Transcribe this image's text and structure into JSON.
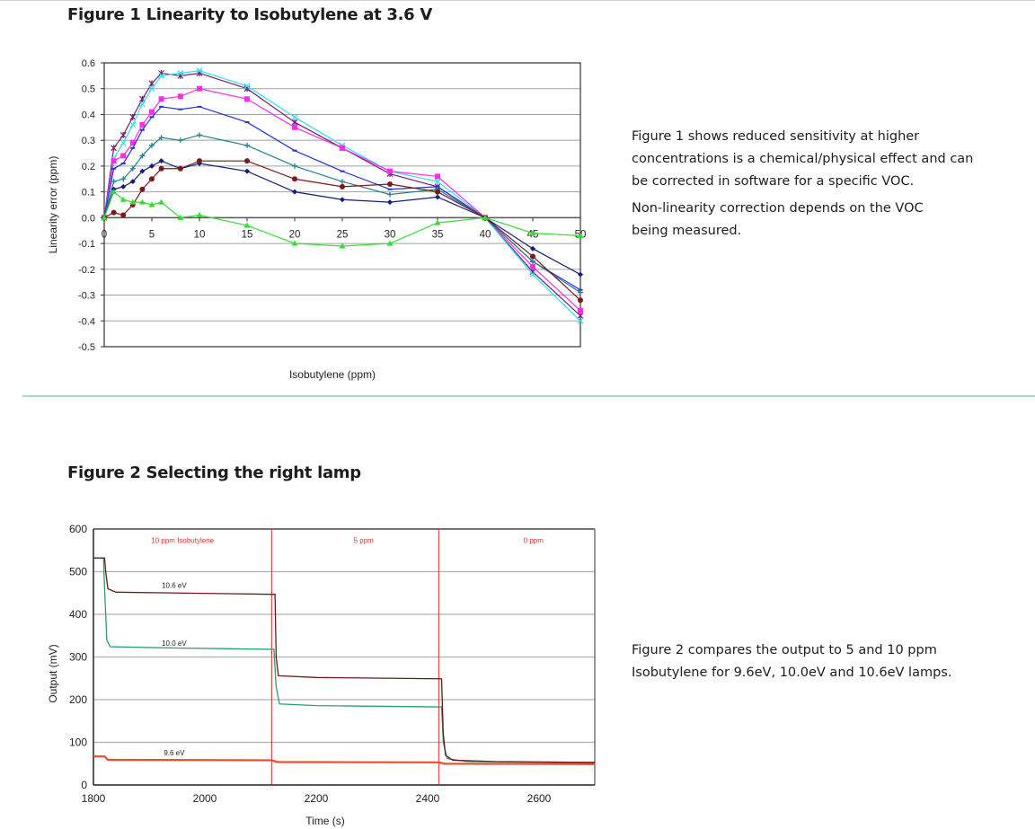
{
  "figure1": {
    "title": "Figure 1 Linearity to Isobutylene at 3.6 V",
    "paragraphs": [
      "Figure 1 shows reduced sensitivity at higher concentrations is a chemical/physical effect and can be corrected in software for a specific VOC.",
      "Non-linearity correction depends on the VOC being measured."
    ],
    "paragraph_lines": [
      [
        "Figure 1 shows reduced sensitivity at higher",
        "concentrations is a chemical/physical effect and can",
        "be corrected in software for a specific VOC."
      ],
      [
        "Non-linearity correction depends on the VOC",
        "being measured."
      ]
    ]
  },
  "figure2": {
    "title": "Figure 2 Selecting the right lamp",
    "paragraph_lines": [
      [
        "Figure 2 compares the output to 5 and 10 ppm",
        "Isobutylene for 9.6eV, 10.0eV and 10.6eV lamps."
      ]
    ]
  },
  "colors": {
    "divider": "#a8dcc8",
    "annotation_red": "#e03030"
  },
  "chart_data": [
    {
      "type": "line",
      "title": "Figure 1 Linearity to Isobutylene at 3.6 V",
      "xlabel": "Isobutylene (ppm)",
      "ylabel": "Linearity error (ppm)",
      "xlim": [
        0,
        50
      ],
      "ylim": [
        -0.5,
        0.6
      ],
      "xticks": [
        0,
        5,
        10,
        15,
        20,
        25,
        30,
        35,
        40,
        45,
        50
      ],
      "yticks": [
        0.6,
        0.5,
        0.4,
        0.3,
        0.2,
        0.1,
        0.0,
        -0.1,
        -0.2,
        -0.3,
        -0.4,
        -0.5
      ],
      "ytick_labels": [
        "0.6",
        "0.5",
        "0.4",
        "0.3",
        "0.2",
        "0.1",
        "0.0",
        "-0.1",
        "-0.2",
        "-0.3",
        "-0.4",
        "-0.5"
      ],
      "grid": true,
      "legend": null,
      "x": [
        0,
        1,
        2,
        3,
        4,
        5,
        6,
        8,
        10,
        15,
        20,
        25,
        30,
        35,
        40,
        45,
        50
      ],
      "series": [
        {
          "name": "purple-star",
          "color": "#7b1f6e",
          "marker": "star",
          "values": [
            0,
            0.27,
            0.32,
            0.39,
            0.46,
            0.52,
            0.56,
            0.55,
            0.56,
            0.5,
            0.37,
            0.27,
            0.17,
            0.12,
            0,
            -0.21,
            -0.38
          ]
        },
        {
          "name": "cyan-x",
          "color": "#33e0f0",
          "marker": "x",
          "values": [
            0,
            0.23,
            0.29,
            0.36,
            0.44,
            0.5,
            0.55,
            0.56,
            0.57,
            0.51,
            0.39,
            0.28,
            0.18,
            0.14,
            0,
            -0.22,
            -0.4
          ]
        },
        {
          "name": "magenta-square",
          "color": "#ff2cf0",
          "marker": "square",
          "values": [
            0,
            0.22,
            0.24,
            0.29,
            0.36,
            0.41,
            0.46,
            0.47,
            0.5,
            0.46,
            0.35,
            0.27,
            0.18,
            0.16,
            0,
            -0.19,
            -0.36
          ]
        },
        {
          "name": "blue-dash",
          "color": "#2332d8",
          "marker": "dash",
          "values": [
            0,
            0.19,
            0.21,
            0.27,
            0.34,
            0.39,
            0.43,
            0.42,
            0.43,
            0.37,
            0.26,
            0.18,
            0.11,
            0.12,
            0,
            -0.17,
            -0.28
          ]
        },
        {
          "name": "teal-plus",
          "color": "#20828a",
          "marker": "plus",
          "values": [
            0,
            0.14,
            0.15,
            0.19,
            0.24,
            0.28,
            0.31,
            0.3,
            0.32,
            0.28,
            0.2,
            0.14,
            0.09,
            0.11,
            0,
            -0.17,
            -0.29
          ]
        },
        {
          "name": "navy-diamond",
          "color": "#151d7a",
          "marker": "diamond",
          "values": [
            0,
            0.11,
            0.12,
            0.14,
            0.18,
            0.2,
            0.22,
            0.19,
            0.21,
            0.18,
            0.1,
            0.07,
            0.06,
            0.08,
            0,
            -0.12,
            -0.22
          ]
        },
        {
          "name": "maroon-circle",
          "color": "#7a1a1a",
          "marker": "circle",
          "values": [
            0,
            0.02,
            0.01,
            0.05,
            0.11,
            0.15,
            0.19,
            0.19,
            0.22,
            0.22,
            0.15,
            0.12,
            0.13,
            0.1,
            0,
            -0.15,
            -0.32
          ]
        },
        {
          "name": "green-triangle",
          "color": "#33dd33",
          "marker": "triangle",
          "values": [
            0,
            0.1,
            0.07,
            0.06,
            0.06,
            0.05,
            0.06,
            0.0,
            0.01,
            -0.03,
            -0.1,
            -0.11,
            -0.1,
            -0.02,
            0,
            -0.06,
            -0.07
          ]
        }
      ]
    },
    {
      "type": "line",
      "title": "Figure 2 Selecting the right lamp",
      "xlabel": "Time (s)",
      "ylabel": "Output (mV)",
      "xlim": [
        1800,
        2700
      ],
      "ylim": [
        0,
        600
      ],
      "xticks": [
        1800,
        2000,
        2200,
        2400,
        2600
      ],
      "yticks": [
        600,
        500,
        400,
        300,
        200,
        100,
        0
      ],
      "grid": true,
      "annotations": [
        {
          "text": "10 ppm Isobutylene",
          "x": 1960,
          "y": 567
        },
        {
          "text": "5 ppm",
          "x": 2285,
          "y": 567
        },
        {
          "text": "0 ppm",
          "x": 2590,
          "y": 567
        },
        {
          "text": "10.6 eV",
          "x": 1945,
          "y": 462
        },
        {
          "text": "10.0 eV",
          "x": 1945,
          "y": 326
        },
        {
          "text": "9.6 eV",
          "x": 1945,
          "y": 70
        }
      ],
      "vlines": [
        2120,
        2420
      ],
      "series": [
        {
          "name": "10.6 eV",
          "color": "#6a1a1a",
          "points": [
            [
              1800,
              532
            ],
            [
              1820,
              532
            ],
            [
              1822,
              500
            ],
            [
              1826,
              460
            ],
            [
              1840,
              452
            ],
            [
              1950,
              450
            ],
            [
              2120,
              447
            ],
            [
              2126,
              447
            ],
            [
              2128,
              300
            ],
            [
              2132,
              256
            ],
            [
              2200,
              252
            ],
            [
              2420,
              249
            ],
            [
              2425,
              249
            ],
            [
              2428,
              120
            ],
            [
              2432,
              70
            ],
            [
              2445,
              58
            ],
            [
              2520,
              55
            ],
            [
              2700,
              53
            ]
          ]
        },
        {
          "name": "10.0 eV",
          "color": "#2f9e6a",
          "points": [
            [
              1800,
              532
            ],
            [
              1818,
              532
            ],
            [
              1820,
              460
            ],
            [
              1824,
              340
            ],
            [
              1830,
              324
            ],
            [
              1950,
              321
            ],
            [
              2120,
              318
            ],
            [
              2124,
              318
            ],
            [
              2128,
              230
            ],
            [
              2134,
              190
            ],
            [
              2200,
              186
            ],
            [
              2420,
              183
            ],
            [
              2425,
              183
            ],
            [
              2428,
              100
            ],
            [
              2435,
              62
            ],
            [
              2470,
              55
            ],
            [
              2700,
              52
            ]
          ]
        },
        {
          "name": "9.6 eV",
          "color": "#f04a2a",
          "points": [
            [
              1800,
              67
            ],
            [
              1820,
              67
            ],
            [
              1826,
              59
            ],
            [
              2120,
              58
            ],
            [
              2130,
              54
            ],
            [
              2420,
              53
            ],
            [
              2430,
              50
            ],
            [
              2700,
              49
            ]
          ]
        }
      ]
    }
  ]
}
